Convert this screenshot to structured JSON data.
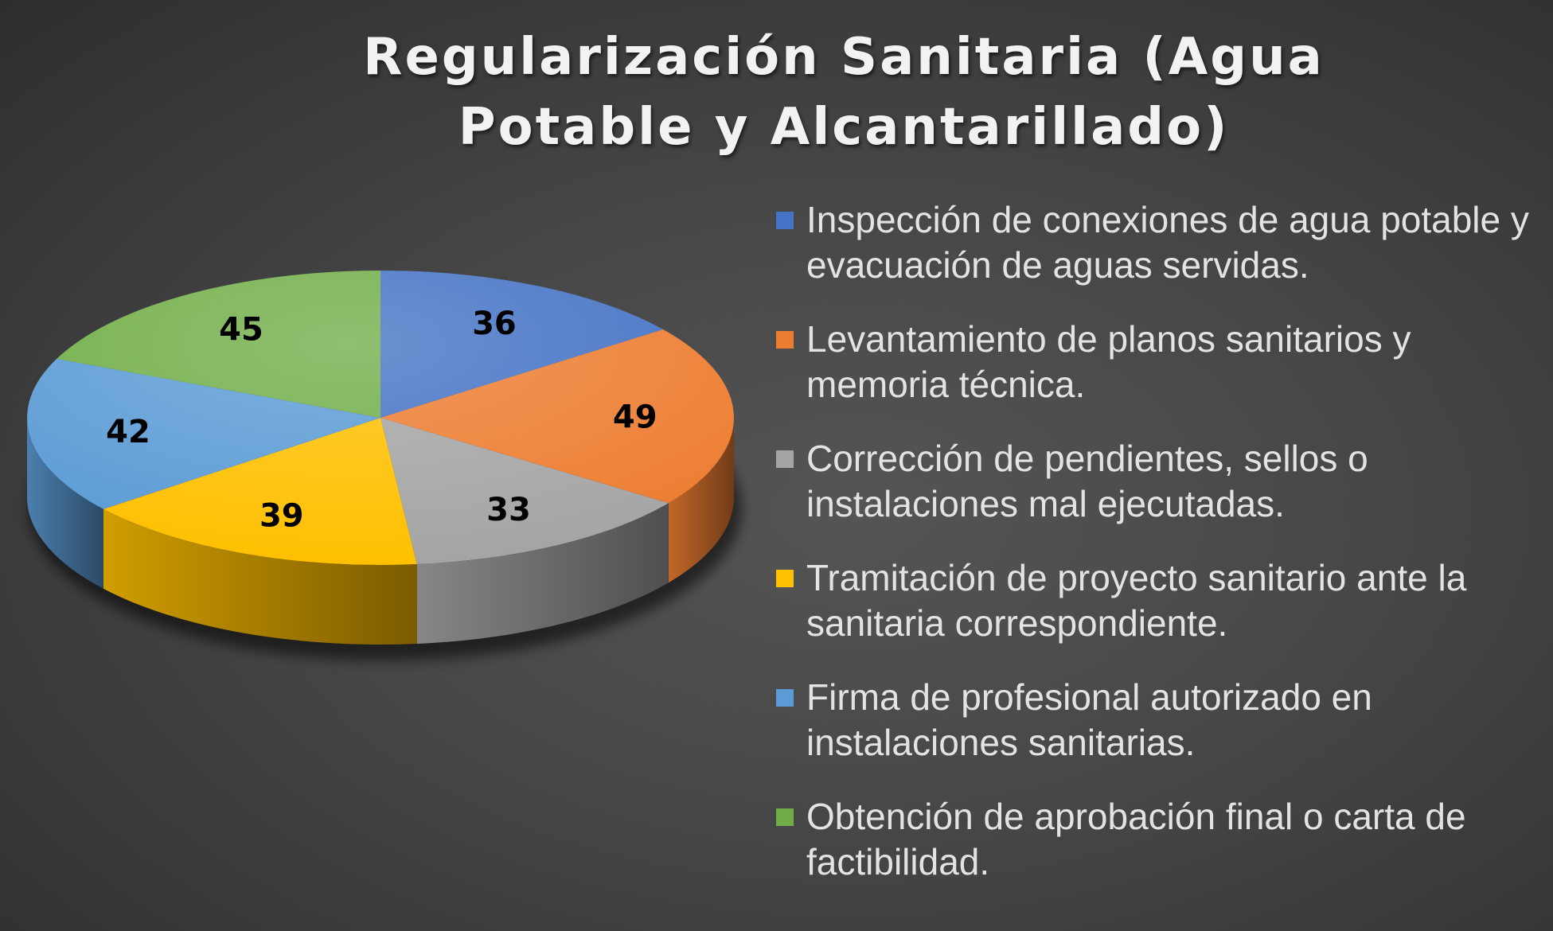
{
  "chart_data": {
    "type": "pie",
    "title": "Regularización Sanitaria (Agua Potable y Alcantarillado)",
    "legend_position": "right",
    "categories": [
      "Inspección de conexiones de agua potable y evacuación de aguas servidas.",
      "Levantamiento de planos sanitarios y memoria técnica.",
      "Corrección de pendientes, sellos o instalaciones mal ejecutadas.",
      "Tramitación de proyecto sanitario ante la sanitaria correspondiente.",
      "Firma de profesional autorizado en instalaciones sanitarias.",
      "Obtención de aprobación final o carta de factibilidad."
    ],
    "values": [
      36,
      49,
      33,
      39,
      42,
      45
    ],
    "colors": [
      "#4472C4",
      "#ED7D31",
      "#A5A5A5",
      "#FFC000",
      "#5B9BD5",
      "#70AD47"
    ],
    "legend": {
      "items": [
        {
          "label": "Inspección de conexiones de agua potable y evacuación de aguas servidas.",
          "color": "#4472C4"
        },
        {
          "label": "Levantamiento de planos sanitarios y memoria técnica.",
          "color": "#ED7D31"
        },
        {
          "label": "Corrección de pendientes, sellos o instalaciones mal ejecutadas.",
          "color": "#A5A5A5"
        },
        {
          "label": "Tramitación de proyecto sanitario ante la sanitaria correspondiente.",
          "color": "#FFC000"
        },
        {
          "label": "Firma de profesional autorizado en instalaciones sanitarias.",
          "color": "#5B9BD5"
        },
        {
          "label": "Obtención de aprobación final o carta de factibilidad.",
          "color": "#70AD47"
        }
      ]
    }
  }
}
